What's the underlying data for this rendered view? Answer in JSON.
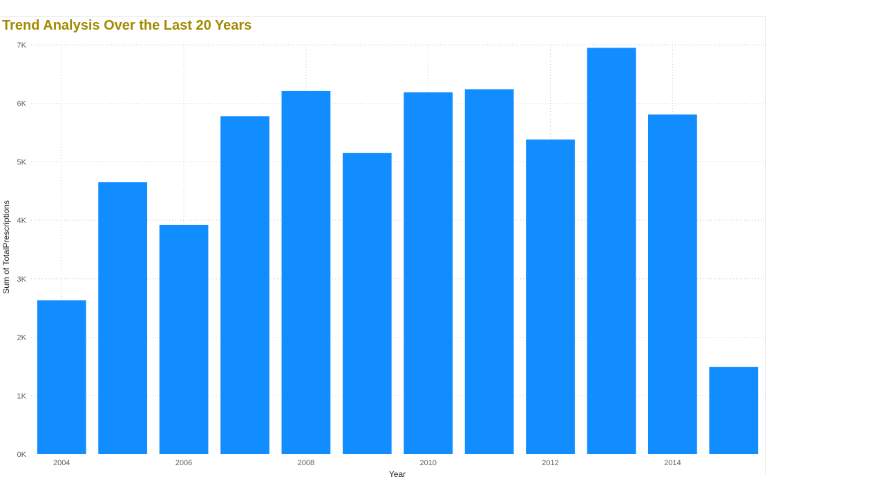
{
  "chart_data": {
    "type": "bar",
    "title": "Trend Analysis Over the Last 20 Years",
    "xlabel": "Year",
    "ylabel": "Sum of TotalPrescriptions",
    "categories": [
      2004,
      2005,
      2006,
      2007,
      2008,
      2009,
      2010,
      2011,
      2012,
      2013,
      2014,
      2015
    ],
    "series": [
      {
        "values": [
          2630,
          4650,
          3920,
          5780,
          6210,
          5150,
          6190,
          6240,
          5380,
          6950,
          5810,
          1490
        ]
      }
    ],
    "ylim": [
      0,
      7000
    ],
    "yticks": [
      {
        "value": 0,
        "label": "0K"
      },
      {
        "value": 1000,
        "label": "1K"
      },
      {
        "value": 2000,
        "label": "2K"
      },
      {
        "value": 3000,
        "label": "3K"
      },
      {
        "value": 4000,
        "label": "4K"
      },
      {
        "value": 5000,
        "label": "5K"
      },
      {
        "value": 6000,
        "label": "6K"
      },
      {
        "value": 7000,
        "label": "7K"
      }
    ],
    "xticks": [
      "2004",
      "2006",
      "2008",
      "2010",
      "2012",
      "2014"
    ],
    "grid": true,
    "bar_color": "#118dff",
    "title_color": "#a08a00"
  }
}
